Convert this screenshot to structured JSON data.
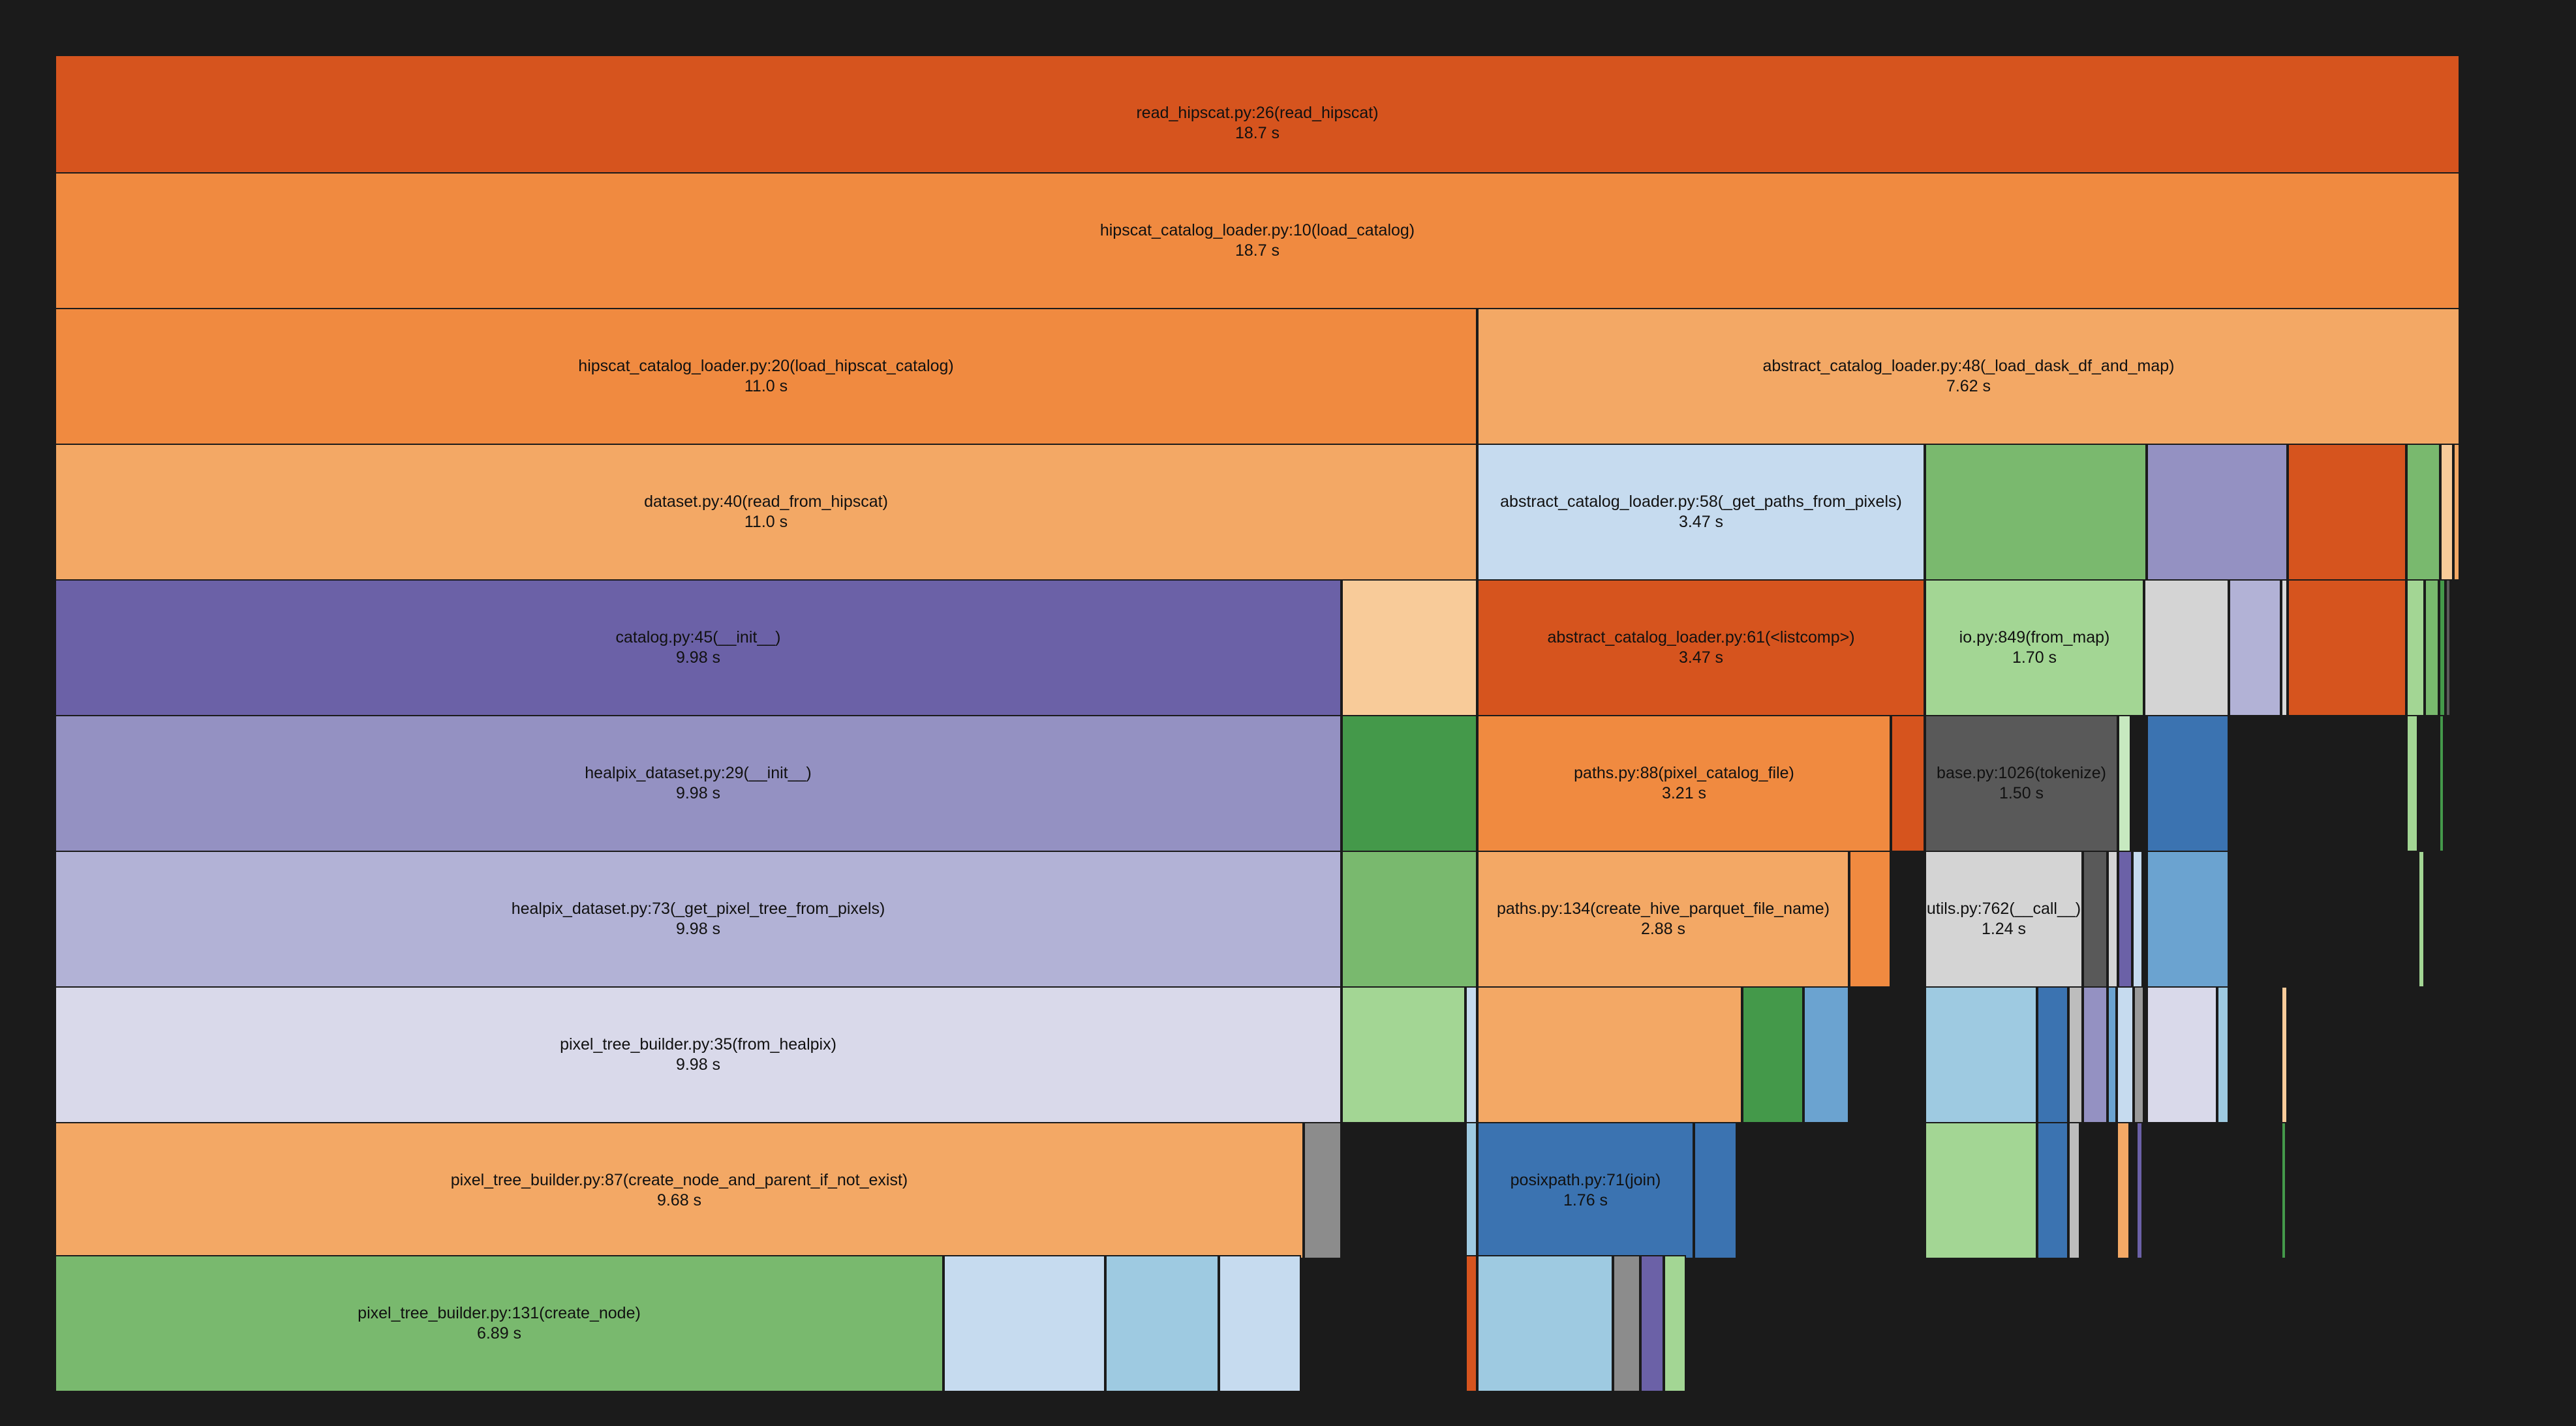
{
  "flamegraph": {
    "frames": [
      {
        "name": "frame-read-hipscat",
        "fn": "read_hipscat.py:26(read_hipscat)",
        "time": "18.7 s",
        "color": "#d6541e"
      },
      {
        "name": "frame-load-catalog",
        "fn": "hipscat_catalog_loader.py:10(load_catalog)",
        "time": "18.7 s",
        "color": "#f08a40"
      },
      {
        "name": "frame-load-hipscat-catalog",
        "fn": "hipscat_catalog_loader.py:20(load_hipscat_catalog)",
        "time": "11.0 s",
        "color": "#f08a40"
      },
      {
        "name": "frame-load-dask-df-and-map",
        "fn": "abstract_catalog_loader.py:48(_load_dask_df_and_map)",
        "time": "7.62 s",
        "color": "#f3a865"
      },
      {
        "name": "frame-read-from-hipscat",
        "fn": "dataset.py:40(read_from_hipscat)",
        "time": "11.0 s",
        "color": "#f3a865"
      },
      {
        "name": "frame-get-paths-from-pixels",
        "fn": "abstract_catalog_loader.py:58(_get_paths_from_pixels)",
        "time": "3.47 s",
        "color": "#c6dbef"
      },
      {
        "name": "frame-catalog-init",
        "fn": "catalog.py:45(__init__)",
        "time": "9.98 s",
        "color": "#6b61a7"
      },
      {
        "name": "frame-listcomp",
        "fn": "abstract_catalog_loader.py:61(<listcomp>)",
        "time": "3.47 s",
        "color": "#d6541e"
      },
      {
        "name": "frame-from-map",
        "fn": "io.py:849(from_map)",
        "time": "1.70 s",
        "color": "#a3d694"
      },
      {
        "name": "frame-healpix-dataset-init",
        "fn": "healpix_dataset.py:29(__init__)",
        "time": "9.98 s",
        "color": "#9491c2"
      },
      {
        "name": "frame-pixel-catalog-file",
        "fn": "paths.py:88(pixel_catalog_file)",
        "time": "3.21 s",
        "color": "#f08a40"
      },
      {
        "name": "frame-tokenize",
        "fn": "base.py:1026(tokenize)",
        "time": "1.50 s",
        "color": "#595959"
      },
      {
        "name": "frame-get-pixel-tree",
        "fn": "healpix_dataset.py:73(_get_pixel_tree_from_pixels)",
        "time": "9.98 s",
        "color": "#b2b2d6"
      },
      {
        "name": "frame-create-hive-parquet",
        "fn": "paths.py:134(create_hive_parquet_file_name)",
        "time": "2.88 s",
        "color": "#f3a865"
      },
      {
        "name": "frame-utils-call",
        "fn": "utils.py:762(__call__)",
        "time": "1.24 s",
        "color": "#d4d4d4"
      },
      {
        "name": "frame-from-healpix",
        "fn": "pixel_tree_builder.py:35(from_healpix)",
        "time": "9.98 s",
        "color": "#d9d9ea"
      },
      {
        "name": "frame-create-node-and-parent",
        "fn": "pixel_tree_builder.py:87(create_node_and_parent_if_not_exist)",
        "time": "9.68 s",
        "color": "#f3a865"
      },
      {
        "name": "frame-posixpath-join",
        "fn": "posixpath.py:71(join)",
        "time": "1.76 s",
        "color": "#3b73b1"
      },
      {
        "name": "frame-create-node",
        "fn": "pixel_tree_builder.py:131(create_node)",
        "time": "6.89 s",
        "color": "#79b96e"
      },
      {
        "name": "frame-unlabeled",
        "color": "#7ab96e"
      },
      {
        "name": "frame-unlabeled",
        "color": "#9491c2"
      },
      {
        "name": "frame-unlabeled",
        "color": "#d6541e"
      },
      {
        "name": "frame-unlabeled",
        "color": "#79b96e"
      },
      {
        "name": "frame-unlabeled",
        "color": "#f8cb99"
      },
      {
        "name": "frame-unlabeled",
        "color": "#f3a865"
      },
      {
        "name": "frame-unlabeled",
        "color": "#f8cb99"
      },
      {
        "name": "frame-unlabeled",
        "color": "#d4d4d4"
      },
      {
        "name": "frame-unlabeled",
        "color": "#b2b2d6"
      },
      {
        "name": "frame-unlabeled",
        "color": "#d9d9d9"
      },
      {
        "name": "frame-unlabeled",
        "color": "#d6541e"
      },
      {
        "name": "frame-unlabeled",
        "color": "#a3d694"
      },
      {
        "name": "frame-unlabeled",
        "color": "#79b96e"
      },
      {
        "name": "frame-unlabeled",
        "color": "#44994a"
      },
      {
        "name": "frame-unlabeled",
        "color": "#595959"
      },
      {
        "name": "frame-unlabeled",
        "color": "#44994a"
      },
      {
        "name": "frame-unlabeled",
        "color": "#d6541e"
      },
      {
        "name": "frame-unlabeled",
        "color": "#c7e9c0"
      },
      {
        "name": "frame-unlabeled",
        "color": "#3b73b1"
      },
      {
        "name": "frame-unlabeled",
        "color": "#a3d694"
      },
      {
        "name": "frame-unlabeled",
        "color": "#44994a"
      },
      {
        "name": "frame-unlabeled",
        "color": "#79b96e"
      },
      {
        "name": "frame-unlabeled",
        "color": "#f08a40"
      },
      {
        "name": "frame-unlabeled",
        "color": "#595959"
      },
      {
        "name": "frame-unlabeled",
        "color": "#d4d4d4"
      },
      {
        "name": "frame-unlabeled",
        "color": "#6b61a7"
      },
      {
        "name": "frame-unlabeled",
        "color": "#c6dbef"
      },
      {
        "name": "frame-unlabeled",
        "color": "#6ba3d0"
      },
      {
        "name": "frame-unlabeled",
        "color": "#a3d694"
      },
      {
        "name": "frame-unlabeled",
        "color": "#a3d694"
      },
      {
        "name": "frame-unlabeled",
        "color": "#c6dbef"
      },
      {
        "name": "frame-unlabeled",
        "color": "#f3a865"
      },
      {
        "name": "frame-unlabeled",
        "color": "#44994a"
      },
      {
        "name": "frame-unlabeled",
        "color": "#6ba3d0"
      },
      {
        "name": "frame-unlabeled",
        "color": "#9ecae1"
      },
      {
        "name": "frame-unlabeled",
        "color": "#3b73b1"
      },
      {
        "name": "frame-unlabeled",
        "color": "#bdbdbd"
      },
      {
        "name": "frame-unlabeled",
        "color": "#9491c2"
      },
      {
        "name": "frame-unlabeled",
        "color": "#6ba3d0"
      },
      {
        "name": "frame-unlabeled",
        "color": "#c6dbef"
      },
      {
        "name": "frame-unlabeled",
        "color": "#9a9a9a"
      },
      {
        "name": "frame-unlabeled",
        "color": "#d9d9ea"
      },
      {
        "name": "frame-unlabeled",
        "color": "#9ecae1"
      },
      {
        "name": "frame-unlabeled",
        "color": "#f8cb99"
      },
      {
        "name": "frame-unlabeled",
        "color": "#8c8c8c"
      },
      {
        "name": "frame-unlabeled",
        "color": "#9ecae1"
      },
      {
        "name": "frame-unlabeled",
        "color": "#3b73b1"
      },
      {
        "name": "frame-unlabeled",
        "color": "#a3d694"
      },
      {
        "name": "frame-unlabeled",
        "color": "#3b73b1"
      },
      {
        "name": "frame-unlabeled",
        "color": "#bdbdbd"
      },
      {
        "name": "frame-unlabeled",
        "color": "#f3a865"
      },
      {
        "name": "frame-unlabeled",
        "color": "#6b61a7"
      },
      {
        "name": "frame-unlabeled",
        "color": "#44994a"
      },
      {
        "name": "frame-unlabeled",
        "color": "#c6dbef"
      },
      {
        "name": "frame-unlabeled",
        "color": "#9ecae1"
      },
      {
        "name": "frame-unlabeled",
        "color": "#c6dbef"
      },
      {
        "name": "frame-unlabeled",
        "color": "#d6541e"
      },
      {
        "name": "frame-unlabeled",
        "color": "#9ecae1"
      },
      {
        "name": "frame-unlabeled",
        "color": "#8c8c8c"
      },
      {
        "name": "frame-unlabeled",
        "color": "#6b61a7"
      },
      {
        "name": "frame-unlabeled",
        "color": "#a3d694"
      }
    ]
  }
}
